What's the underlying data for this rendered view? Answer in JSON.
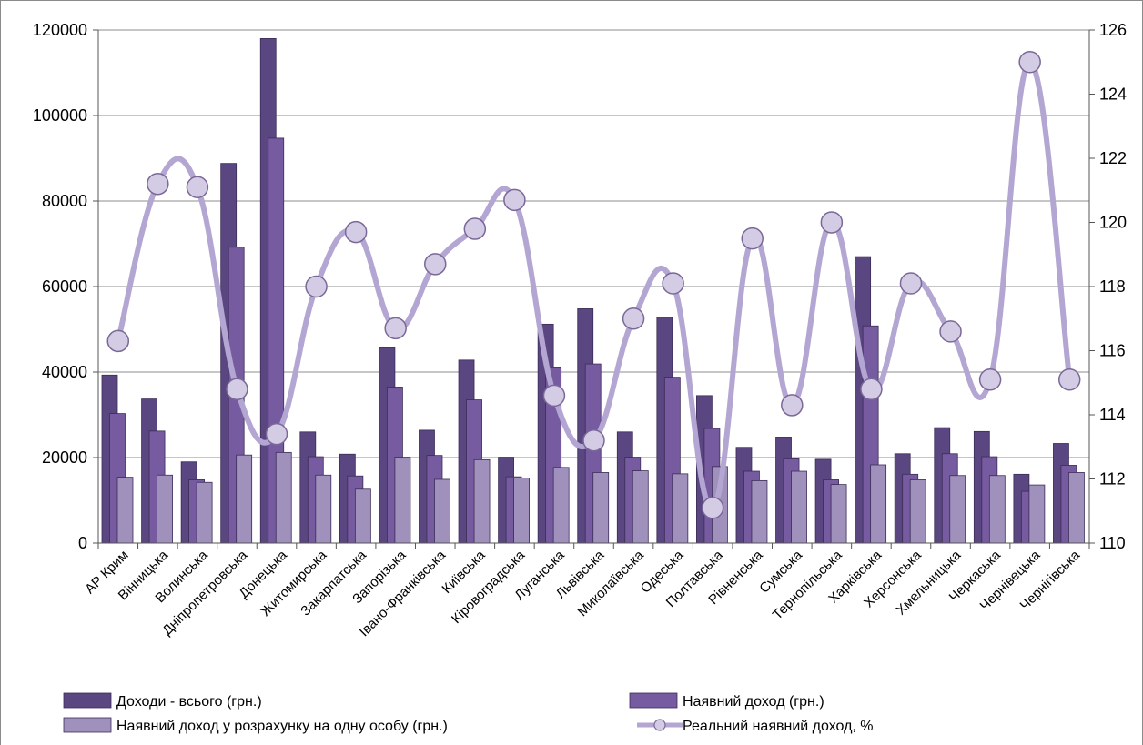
{
  "chart_data": {
    "type": "bar",
    "categories": [
      "АР Крим",
      "Вінницька",
      "Волинська",
      "Дніпропетровська",
      "Донецька",
      "Житомирська",
      "Закарпатська",
      "Запорізька",
      "Івано-Франківська",
      "Київська",
      "Кіровоградська",
      "Луганська",
      "Львівська",
      "Миколаївська",
      "Одеська",
      "Полтавська",
      "Рівненська",
      "Сумська",
      "Тернопільська",
      "Харківська",
      "Херсонська",
      "Хмельницька",
      "Черкаська",
      "Чернівецька",
      "Чернігівська"
    ],
    "series": [
      {
        "name": "Доходи - всього (грн.)",
        "kind": "bar",
        "axis": "left",
        "color": "#5a4680",
        "values": [
          39300,
          33700,
          19000,
          88800,
          118000,
          26000,
          20800,
          45700,
          26400,
          42800,
          20100,
          51200,
          54800,
          26000,
          52800,
          34500,
          22400,
          24800,
          19600,
          67000,
          20900,
          27000,
          26100,
          16100,
          23300
        ]
      },
      {
        "name": "Наявний доход (грн.)",
        "kind": "bar",
        "axis": "left",
        "color": "#775ba0",
        "values": [
          30300,
          26200,
          14800,
          69200,
          94700,
          20200,
          15700,
          36500,
          20500,
          33500,
          15500,
          41000,
          41900,
          20100,
          38800,
          26800,
          16800,
          19700,
          14800,
          50800,
          16100,
          20900,
          20200,
          12100,
          18200
        ]
      },
      {
        "name": "Наявний доход у розрахунку на одну особу (грн.)",
        "kind": "bar",
        "axis": "left",
        "color": "#a090bc",
        "values": [
          15400,
          15900,
          14200,
          20600,
          21200,
          15900,
          12600,
          20100,
          14900,
          19500,
          15200,
          17700,
          16500,
          16900,
          16200,
          17900,
          14600,
          16800,
          13700,
          18300,
          14800,
          15800,
          15800,
          13600,
          16500
        ]
      },
      {
        "name": "Реальний наявний доход, %",
        "kind": "line",
        "axis": "right",
        "color": "#b4a6d2",
        "values": [
          116.3,
          121.2,
          121.1,
          114.8,
          113.4,
          118.0,
          119.7,
          116.7,
          118.7,
          119.8,
          120.7,
          114.6,
          113.2,
          117.0,
          118.1,
          111.1,
          119.5,
          114.3,
          120.0,
          114.8,
          118.1,
          116.6,
          115.1,
          125.0,
          115.1
        ]
      }
    ],
    "ylim": [
      0,
      120000
    ],
    "yticks": [
      "0",
      "20000",
      "40000",
      "60000",
      "80000",
      "100000",
      "120000"
    ],
    "y2lim": [
      110,
      126
    ],
    "y2ticks": [
      "110",
      "112",
      "114",
      "116",
      "118",
      "120",
      "122",
      "124",
      "126"
    ],
    "grid": true,
    "legend": "bottom",
    "line_marker_color": "#d4cce4",
    "background": "#ffffff"
  }
}
